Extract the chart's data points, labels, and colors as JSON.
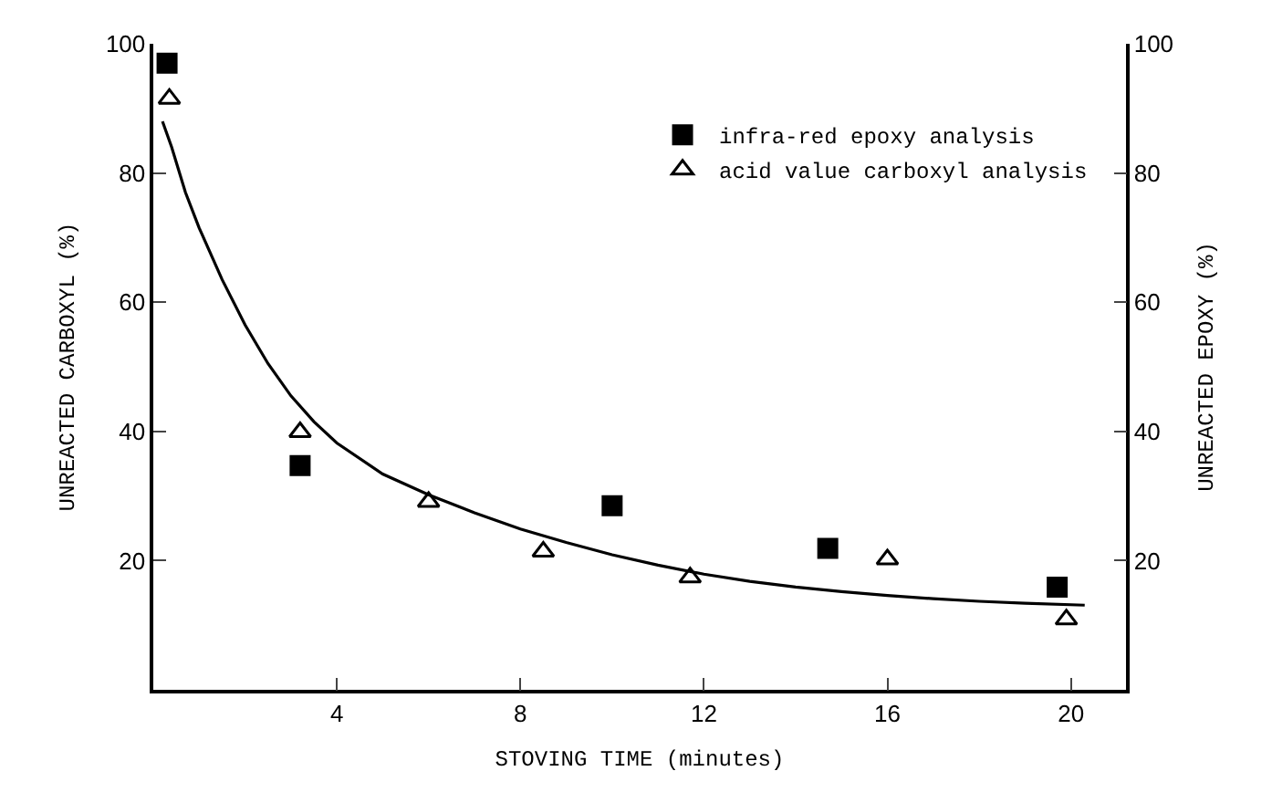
{
  "chart_data": {
    "type": "scatter",
    "xlabel": "STOVING TIME (minutes)",
    "ylabel": "UNREACTED CARBOXYL (%)",
    "y2label": "UNREACTED EPOXY (%)",
    "xlim": [
      0,
      21.2
    ],
    "xticks": [
      4,
      8,
      12,
      16,
      20
    ],
    "ylim": [
      0,
      100
    ],
    "yticks": [
      20,
      40,
      60,
      80,
      100
    ],
    "y2lim": [
      0,
      100
    ],
    "y2ticks": [
      20,
      40,
      60,
      80,
      100
    ],
    "grid": false,
    "legend": "top right",
    "series": [
      {
        "name": "infra-red epoxy analysis",
        "color": "#000000",
        "marker": "square",
        "axis": "y2",
        "x": [
          0.3,
          3.2,
          10.0,
          14.7,
          19.7
        ],
        "values": [
          97,
          34.7,
          28.5,
          21.9,
          15.9
        ]
      },
      {
        "name": "acid value carboxyl analysis",
        "color": "#000000",
        "marker": "triangle",
        "x": [
          0.35,
          3.2,
          6.0,
          8.5,
          11.7,
          16.0,
          19.9
        ],
        "values": [
          91.5,
          39.9,
          29.1,
          21.4,
          17.4,
          20.2,
          10.9
        ]
      },
      {
        "type": "line",
        "color": "#000000",
        "marker": "none",
        "line_style": "solid",
        "x": [
          0.2,
          0.4,
          0.7,
          1.0,
          1.5,
          2.0,
          2.5,
          3.0,
          3.5,
          4,
          5,
          6,
          7,
          8,
          9,
          10,
          11,
          12,
          13,
          14,
          15,
          16,
          17,
          18,
          19,
          20.3
        ],
        "values": [
          88,
          84,
          77,
          71.5,
          63.5,
          56.5,
          50.5,
          45.5,
          41.5,
          38.2,
          33.4,
          30.2,
          27.4,
          24.9,
          22.8,
          20.9,
          19.3,
          17.9,
          16.8,
          15.9,
          15.2,
          14.6,
          14.1,
          13.7,
          13.4,
          13.1
        ]
      }
    ]
  }
}
